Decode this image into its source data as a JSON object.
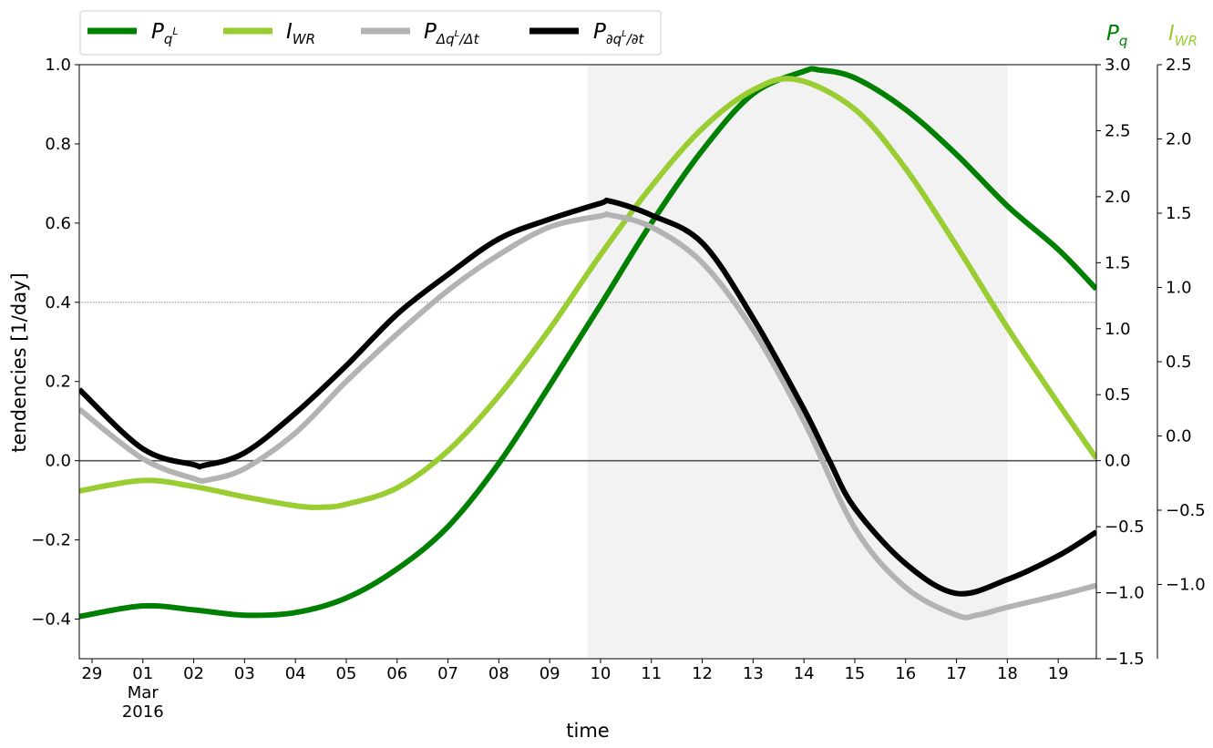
{
  "chart_data": {
    "type": "line",
    "xlabel": "time",
    "ylabel": "tendencies [1/day]",
    "x_ticks": [
      "29",
      "01\nMar\n2016",
      "02",
      "03",
      "04",
      "05",
      "06",
      "07",
      "08",
      "09",
      "10",
      "11",
      "12",
      "13",
      "14",
      "15",
      "16",
      "17",
      "18",
      "19"
    ],
    "x_tick_positions_days": [
      0,
      1,
      2,
      3,
      4,
      5,
      6,
      7,
      8,
      9,
      10,
      11,
      12,
      13,
      14,
      15,
      16,
      17,
      18,
      19
    ],
    "xlim_days": [
      -0.25,
      19.75
    ],
    "x_origin": "2016-02-29",
    "shaded_interval_days": [
      9.75,
      18.0
    ],
    "axes": {
      "left": {
        "ylim": [
          -0.5,
          1.0
        ],
        "ticks": [
          -0.4,
          -0.2,
          0.0,
          0.2,
          0.4,
          0.6,
          0.8,
          1.0
        ],
        "tick_labels": [
          "−0.4",
          "−0.2",
          "0.0",
          "0.2",
          "0.4",
          "0.6",
          "0.8",
          "1.0"
        ]
      },
      "right1": {
        "label": "P",
        "label_sub": "q",
        "color": "#008000",
        "ylim": [
          -1.5,
          3.0
        ],
        "ticks": [
          -1.5,
          -1.0,
          -0.5,
          0.0,
          0.5,
          1.0,
          1.5,
          2.0,
          2.5,
          3.0
        ],
        "tick_labels": [
          "−1.5",
          "−1.0",
          "−0.5",
          "0.0",
          "0.5",
          "1.0",
          "1.5",
          "2.0",
          "2.5",
          "3.0"
        ]
      },
      "right2": {
        "label": "I",
        "label_sub": "WR",
        "color": "#9acd32",
        "ylim": [
          -1.5,
          2.5
        ],
        "ticks": [
          -1.0,
          -0.5,
          0.0,
          0.5,
          1.0,
          1.5,
          2.0,
          2.5
        ],
        "tick_labels": [
          "−1.0",
          "−0.5",
          "0.0",
          "0.5",
          "1.0",
          "1.5",
          "2.0",
          "2.5"
        ]
      }
    },
    "hlines": [
      {
        "axis": "left",
        "y": 0.0,
        "style": "solid",
        "color": "#555555"
      },
      {
        "axis": "left",
        "y": 0.4,
        "style": "dotted",
        "color": "#777777"
      }
    ],
    "series": [
      {
        "name": "P_q^L",
        "legend_main": "P",
        "legend_sub": "q",
        "legend_sup": "L",
        "color": "#008000",
        "axis": "right1",
        "x": [
          -0.25,
          1,
          2,
          3,
          4,
          5,
          6,
          7,
          8,
          9,
          10,
          11,
          12,
          13,
          14,
          14.3,
          15,
          16,
          17,
          18,
          19,
          19.75
        ],
        "y": [
          -1.18,
          -1.1,
          -1.13,
          -1.17,
          -1.15,
          -1.04,
          -0.82,
          -0.5,
          -0.02,
          0.57,
          1.18,
          1.8,
          2.35,
          2.78,
          2.95,
          2.96,
          2.9,
          2.66,
          2.32,
          1.93,
          1.6,
          1.3
        ]
      },
      {
        "name": "I_WR",
        "legend_main": "I",
        "legend_sub": "WR",
        "color": "#9acd32",
        "axis": "right2",
        "x": [
          -0.25,
          1,
          2,
          3,
          4,
          4.5,
          5,
          6,
          7,
          8,
          9,
          10,
          11,
          12,
          13,
          13.85,
          15,
          16,
          17,
          18,
          19,
          19.75
        ],
        "y": [
          -0.37,
          -0.3,
          -0.34,
          -0.41,
          -0.47,
          -0.48,
          -0.46,
          -0.35,
          -0.1,
          0.27,
          0.72,
          1.22,
          1.68,
          2.07,
          2.33,
          2.4,
          2.2,
          1.8,
          1.28,
          0.73,
          0.22,
          -0.15
        ]
      },
      {
        "name": "P_{Δq^L/Δt}",
        "legend_main": "P",
        "legend_sub": "Δq",
        "legend_subsup": "L",
        "legend_subtail": "/Δt",
        "color": "#b3b3b3",
        "axis": "left",
        "x": [
          -0.25,
          1,
          2,
          2.3,
          3,
          4,
          5,
          6,
          7,
          8,
          9,
          10,
          10.2,
          11,
          12,
          13,
          14,
          15,
          16,
          17,
          17.4,
          18,
          19,
          19.75
        ],
        "y": [
          0.13,
          0.005,
          -0.045,
          -0.048,
          -0.02,
          0.07,
          0.2,
          0.32,
          0.43,
          0.52,
          0.59,
          0.618,
          0.62,
          0.59,
          0.5,
          0.33,
          0.1,
          -0.17,
          -0.32,
          -0.39,
          -0.39,
          -0.37,
          -0.34,
          -0.315
        ]
      },
      {
        "name": "P_{∂q^L/∂t}",
        "legend_main": "P",
        "legend_sub": "∂q",
        "legend_subsup": "L",
        "legend_subtail": "/∂t",
        "color": "#000000",
        "axis": "left",
        "x": [
          -0.25,
          1,
          2,
          2.2,
          3,
          4,
          5,
          6,
          7,
          8,
          9,
          10,
          10.2,
          11,
          12,
          13,
          14,
          14.5,
          15,
          16,
          17,
          18,
          19,
          19.75
        ],
        "y": [
          0.18,
          0.03,
          -0.01,
          -0.012,
          0.02,
          0.12,
          0.24,
          0.37,
          0.47,
          0.56,
          0.61,
          0.65,
          0.655,
          0.62,
          0.55,
          0.36,
          0.13,
          0.0,
          -0.12,
          -0.26,
          -0.335,
          -0.3,
          -0.24,
          -0.18
        ]
      }
    ]
  }
}
